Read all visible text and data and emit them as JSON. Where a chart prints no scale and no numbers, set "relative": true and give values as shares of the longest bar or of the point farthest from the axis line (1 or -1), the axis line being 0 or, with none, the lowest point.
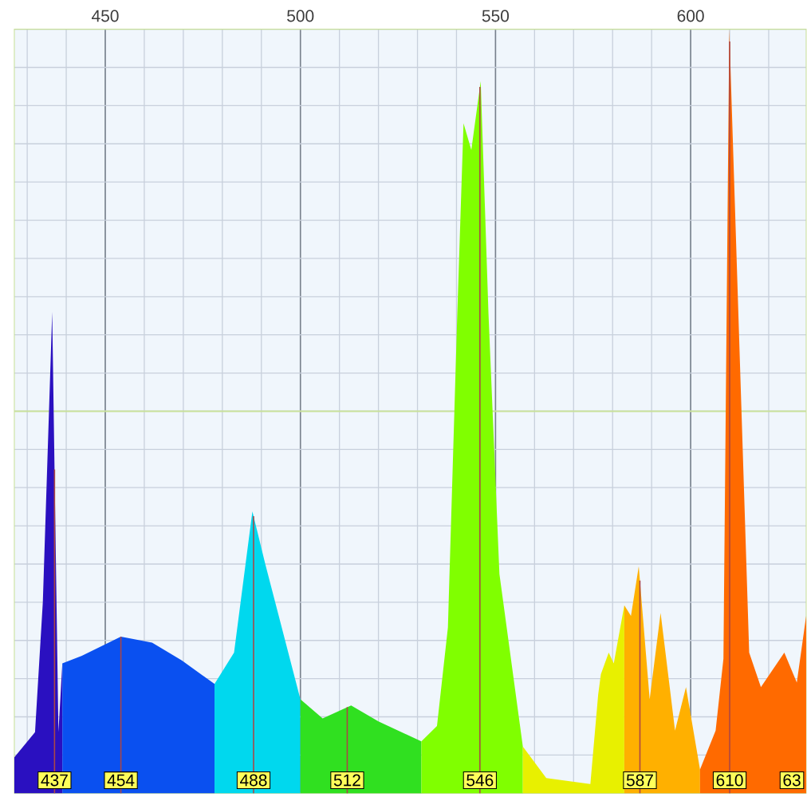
{
  "chart_data": {
    "type": "area",
    "relative": true,
    "series": [
      {
        "color": "#2a10c0",
        "x": [
          426.7,
          432,
          434,
          436.4,
          438,
          439
        ],
        "values": [
          0.047,
          0.08,
          0.25,
          0.63,
          0.08,
          0.17
        ]
      },
      {
        "color": "#0a50f0",
        "x": [
          439,
          444,
          454,
          462,
          469.6,
          478
        ],
        "values": [
          0.17,
          0.18,
          0.205,
          0.197,
          0.174,
          0.143
        ]
      },
      {
        "color": "#00d8ee",
        "x": [
          478,
          483,
          487.7,
          491,
          500
        ],
        "values": [
          0.143,
          0.184,
          0.369,
          0.3,
          0.123
        ]
      },
      {
        "color": "#30e020",
        "x": [
          500,
          505.7,
          513,
          520,
          531
        ],
        "values": [
          0.123,
          0.098,
          0.115,
          0.094,
          0.068
        ]
      },
      {
        "color": "#80ff00",
        "x": [
          531,
          535,
          537.8,
          540.2,
          541.8,
          543.8,
          546.2,
          548.2,
          551,
          557
        ],
        "values": [
          0.068,
          0.088,
          0.217,
          0.627,
          0.877,
          0.842,
          0.932,
          0.627,
          0.287,
          0.061
        ]
      },
      {
        "color": "#e8f000",
        "x": [
          557,
          563,
          574.3,
          576.3,
          577,
          579,
          580.3,
          583
        ],
        "values": [
          0.061,
          0.02,
          0.012,
          0.129,
          0.156,
          0.184,
          0.17,
          0.246
        ]
      },
      {
        "color": "#ffb000",
        "x": [
          583,
          584.7,
          586.7,
          589.5,
          592.3,
          596,
          598.8,
          602.4
        ],
        "values": [
          0.246,
          0.232,
          0.297,
          0.123,
          0.236,
          0.082,
          0.139,
          0.031
        ]
      },
      {
        "color": "#ff6a00",
        "x": [
          602.4,
          606.4,
          608.4,
          609.9,
          615,
          618,
          624,
          627.2,
          629.6
        ],
        "values": [
          0.031,
          0.082,
          0.176,
          1.0,
          0.184,
          0.139,
          0.184,
          0.145,
          0.232
        ]
      }
    ],
    "xlim": [
      426.7,
      629.6
    ],
    "xticks": [
      450,
      500,
      550,
      600
    ],
    "grid": true,
    "ref_lines": [
      {
        "axis": "y",
        "value": 0.5,
        "color": "#c8e09a"
      },
      {
        "axis": "x",
        "value": 437,
        "label": "437",
        "color": "#aa4646"
      },
      {
        "axis": "x",
        "value": 454,
        "label": "454",
        "color": "#aa4646"
      },
      {
        "axis": "x",
        "value": 488,
        "label": "488",
        "color": "#aa4646"
      },
      {
        "axis": "x",
        "value": 512,
        "label": "512",
        "color": "#aa4646"
      },
      {
        "axis": "x",
        "value": 546,
        "label": "546",
        "color": "#aa4646"
      },
      {
        "axis": "x",
        "value": 587,
        "label": "587",
        "color": "#aa4646"
      },
      {
        "axis": "x",
        "value": 610,
        "label": "610",
        "color": "#aa4646"
      }
    ],
    "annotations": [
      "63"
    ]
  }
}
